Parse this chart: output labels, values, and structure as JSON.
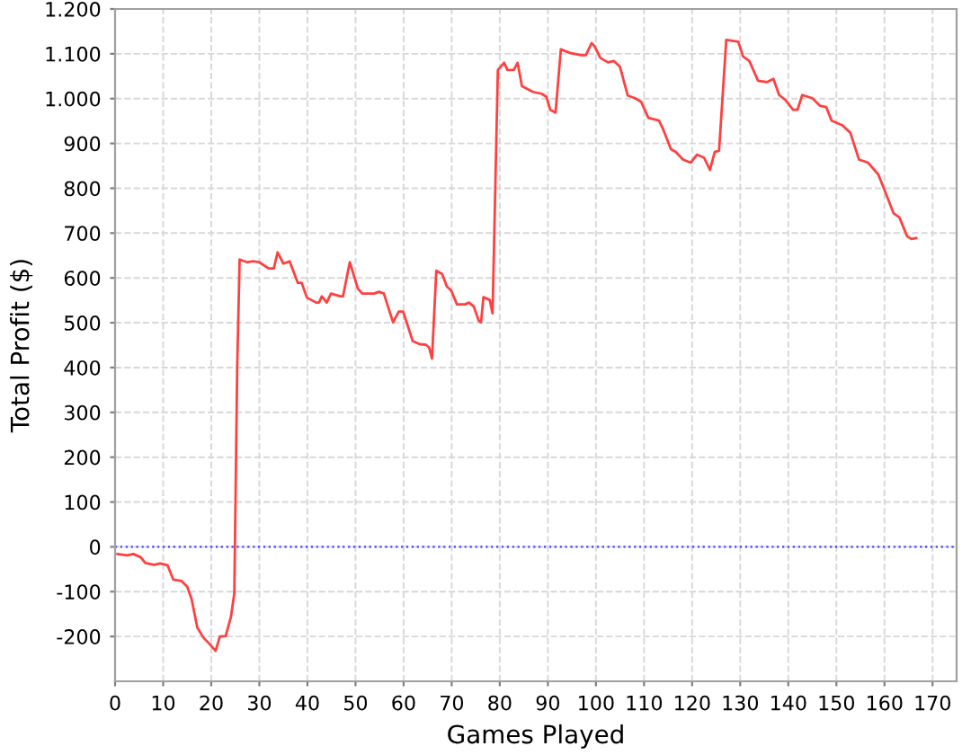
{
  "chart_data": {
    "type": "line",
    "xlabel": "Games Played",
    "ylabel": "Total Profit ($)",
    "xlim": [
      0,
      175
    ],
    "ylim": [
      -300,
      1200
    ],
    "xticks": [
      0,
      10,
      20,
      30,
      40,
      50,
      60,
      70,
      80,
      90,
      100,
      110,
      120,
      130,
      140,
      150,
      160,
      170
    ],
    "yticks": [
      -200,
      -100,
      0,
      100,
      200,
      300,
      400,
      500,
      600,
      700,
      800,
      900,
      {
        "value": 1000,
        "label": "1.000"
      },
      {
        "value": 1100,
        "label": "1.100"
      },
      {
        "value": 1200,
        "label": "1.200"
      }
    ],
    "grid": true,
    "legend": false,
    "marker": "none",
    "line_style": "solid",
    "ref_lines": [
      {
        "axis": "y",
        "value": 0,
        "label": null,
        "color": "#4040ff",
        "line_style": "dotted"
      }
    ],
    "series": [
      {
        "color": "#ff4040",
        "x": [
          0.5,
          2.5,
          3.8,
          5.3,
          6.3,
          8.1,
          9.4,
          10.9,
          12.1,
          13.8,
          15,
          15.9,
          17.1,
          18.4,
          19.6,
          20.9,
          21.8,
          23,
          24.1,
          24.8,
          25.4,
          25.9,
          27.5,
          28.8,
          30,
          31.9,
          33,
          33.8,
          35,
          36.3,
          38,
          38.8,
          39.9,
          41.8,
          42.4,
          43,
          44,
          44.9,
          46.8,
          47.4,
          48.8,
          50.5,
          51.4,
          52.4,
          53.8,
          54.9,
          55.9,
          57.8,
          59,
          59.9,
          61.9,
          63.4,
          64.6,
          65.3,
          65.9,
          66.8,
          68,
          69,
          69.9,
          71.1,
          72.8,
          73.6,
          74.6,
          75.6,
          76.1,
          76.6,
          77.9,
          78.5,
          79.6,
          80.9,
          81.6,
          82.9,
          83.7,
          84.6,
          86.9,
          88.7,
          89.7,
          90.5,
          91.6,
          92.7,
          94.6,
          96.9,
          97.9,
          99.1,
          99.7,
          100.9,
          102.5,
          103.7,
          105,
          106.6,
          108.1,
          109.4,
          110.9,
          113.1,
          114,
          115.6,
          116.6,
          118.1,
          119.7,
          121,
          122.5,
          123.7,
          124.7,
          125.6,
          127.1,
          129.6,
          130.6,
          131.9,
          133.7,
          135.6,
          136.9,
          138.1,
          139.4,
          141,
          141.9,
          142.9,
          145,
          146.6,
          147.9,
          149,
          151.2,
          152.9,
          154.7,
          156.6,
          158.7,
          160.2,
          161.9,
          163.1,
          164.7,
          165.6,
          166.6
        ],
        "values": [
          -16,
          -19,
          -16,
          -23,
          -36,
          -40,
          -37,
          -41,
          -73,
          -76,
          -89,
          -116,
          -180,
          -203,
          -216,
          -232,
          -200,
          -199,
          -156,
          -103,
          404,
          641,
          635,
          637,
          635,
          621,
          621,
          657,
          632,
          637,
          589,
          589,
          556,
          545,
          545,
          559,
          545,
          565,
          559,
          559,
          635,
          576,
          565,
          565,
          565,
          569,
          565,
          501,
          525,
          525,
          459,
          452,
          451,
          445,
          420,
          616,
          609,
          581,
          572,
          541,
          541,
          545,
          536,
          505,
          501,
          557,
          551,
          521,
          1064,
          1080,
          1064,
          1064,
          1080,
          1028,
          1015,
          1011,
          1004,
          975,
          969,
          1110,
          1102,
          1097,
          1097,
          1124,
          1117,
          1091,
          1081,
          1084,
          1071,
          1007,
          1001,
          993,
          957,
          951,
          931,
          887,
          881,
          864,
          857,
          875,
          868,
          841,
          881,
          884,
          1131,
          1127,
          1094,
          1084,
          1040,
          1037,
          1044,
          1008,
          997,
          975,
          975,
          1008,
          1001,
          984,
          981,
          951,
          941,
          924,
          864,
          857,
          831,
          791,
          744,
          735,
          693,
          687,
          689
        ]
      }
    ]
  }
}
